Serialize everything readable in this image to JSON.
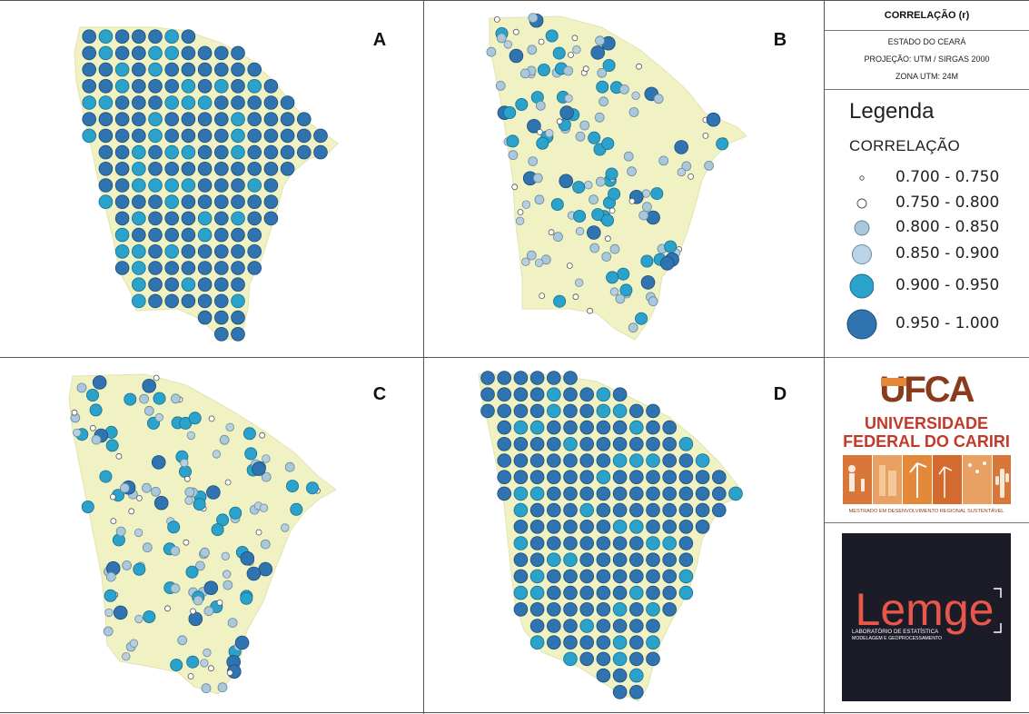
{
  "panels": [
    {
      "letter": "A",
      "style": "grid",
      "palette": [
        "#2f74b0",
        "#2f74b0",
        "#2f74b0",
        "#2aa2cc"
      ]
    },
    {
      "letter": "B",
      "style": "stations",
      "palette": [
        "#2aa2cc",
        "#2aa2cc",
        "#2f74b0",
        "#a9c8dc",
        "#a9c8dc",
        "#b8cfdf",
        "#ffffff"
      ]
    },
    {
      "letter": "C",
      "style": "stations",
      "palette": [
        "#2f74b0",
        "#2aa2cc",
        "#2aa2cc",
        "#a9c8dc",
        "#a9c8dc",
        "#b8cfdf",
        "#ffffff"
      ]
    },
    {
      "letter": "D",
      "style": "grid",
      "palette": [
        "#2f74b0",
        "#2f74b0",
        "#2f74b0",
        "#2f74b0",
        "#2aa2cc"
      ]
    }
  ],
  "header": {
    "title": "CORRELAÇÃO (r)",
    "state": "ESTADO DO CEARÁ",
    "projection": "PROJEÇÃO: UTM / SIRGAS 2000",
    "zone": "ZONA UTM: 24M"
  },
  "legend": {
    "title": "Legenda",
    "subtitle": "CORRELAÇÃO",
    "classes": [
      {
        "label": "0.700 - 0.750",
        "color": "#ffffff",
        "size": "smallest"
      },
      {
        "label": "0.750 - 0.800",
        "color": "#ffffff",
        "size": "small"
      },
      {
        "label": "0.800 - 0.850",
        "color": "#a9c8dc",
        "size": "medium"
      },
      {
        "label": "0.850 - 0.900",
        "color": "#b8d4e6",
        "size": "medium-large"
      },
      {
        "label": "0.900 - 0.950",
        "color": "#2aa2cc",
        "size": "large"
      },
      {
        "label": "0.950 - 1.000",
        "color": "#2f74b0",
        "size": "largest"
      }
    ]
  },
  "ufca_logo": {
    "acronym": "UFCA",
    "line1": "UNIVERSIDADE",
    "line2": "FEDERAL DO CARIRI",
    "tagline": "MESTRADO EM DESENVOLVIMENTO REGIONAL SUSTENTÁVEL",
    "colors": {
      "brown": "#8a3b1b",
      "orange": "#e4893a",
      "red": "#c33a2a"
    }
  },
  "lemge_logo": {
    "name": "Lemge",
    "tagline1": "LABORATÓRIO DE ESTATÍSTICA",
    "tagline2": "MODELAGEM E GEOPROCESSAMENTO",
    "colors": {
      "background": "#1c1c28",
      "accent": "#e8574a"
    }
  },
  "colors": {
    "land": "#f1f2c3",
    "dark_blue": "#2f74b0",
    "cyan": "#2aa2cc",
    "light_blue": "#a9c8dc"
  }
}
